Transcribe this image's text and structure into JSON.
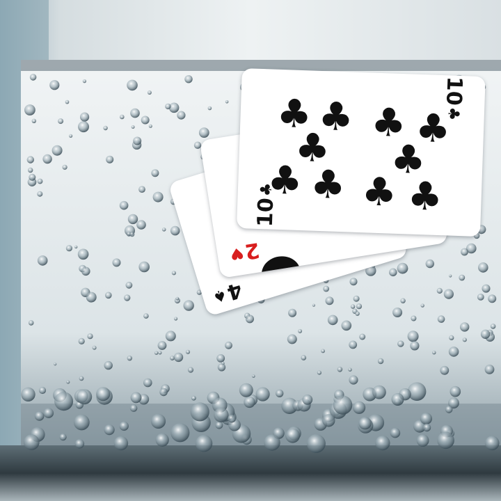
{
  "scene": {
    "subject": "glass-of-sparkling-water",
    "palette": {
      "background": "#dfe5e7",
      "water": "#e9eef0",
      "bubble": "#5b6f7a",
      "card": "#ffffff",
      "black_suit": "#111111",
      "red_suit": "#d81e1e"
    }
  },
  "cards": [
    {
      "rank": "4",
      "suit": "♠",
      "color": "#111111"
    },
    {
      "rank": "2",
      "suit": "♥",
      "color": "#d81e1e"
    },
    {
      "rank": "10",
      "suit": "♣",
      "color": "#111111",
      "pip": "♣"
    }
  ]
}
